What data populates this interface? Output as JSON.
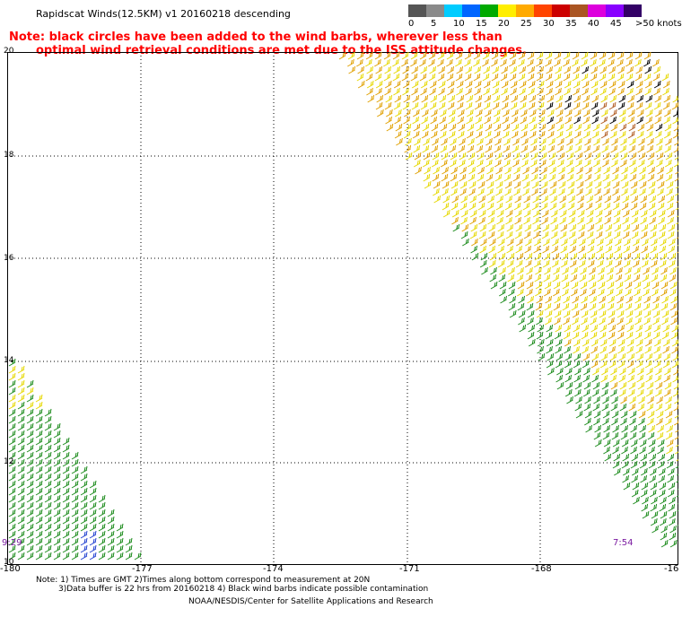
{
  "title": "Rapidscat Winds(12.5KM) v1 20160218 descending",
  "note_line1": "Note: black circles have been added to the wind barbs, wherever less than",
  "note_line2": "optimal wind retrieval conditions are met due to the ISS attitude changes.",
  "legend": {
    "labels": [
      "0",
      "5",
      "10",
      "15",
      "20",
      "25",
      "30",
      "35",
      "40",
      "45",
      ">50 knots"
    ],
    "colors": [
      "#555555",
      "#8a8a8a",
      "#00ccff",
      "#0066ff",
      "#00aa00",
      "#ffee00",
      "#ffaa00",
      "#ff4400",
      "#cc0000",
      "#aa5522",
      "#dd00dd",
      "#8800ff",
      "#330066"
    ]
  },
  "axes": {
    "lat_labels": [
      "20",
      "18",
      "16",
      "14",
      "12",
      "10"
    ],
    "lon_labels": [
      "-180",
      "-177",
      "-174",
      "-171",
      "-168",
      "-16"
    ]
  },
  "time_labels": {
    "left": "9:29",
    "right": "7:54"
  },
  "footnote_line1": "Note: 1) Times are GMT 2)Times along bottom correspond to measurement at 20N",
  "footnote_line2": "3)Data buffer is 22 hrs from 20160218 4) Black wind barbs indicate possible contamination",
  "credit": "NOAA/NESDIS/Center for Satellite Applications and Research",
  "wind_colors": {
    "green": "#1a8a1a",
    "yellow": "#e6d800",
    "orange": "#e0a000",
    "red_brown": "#b05a20",
    "black": "#000000",
    "blue": "#2040d0"
  }
}
